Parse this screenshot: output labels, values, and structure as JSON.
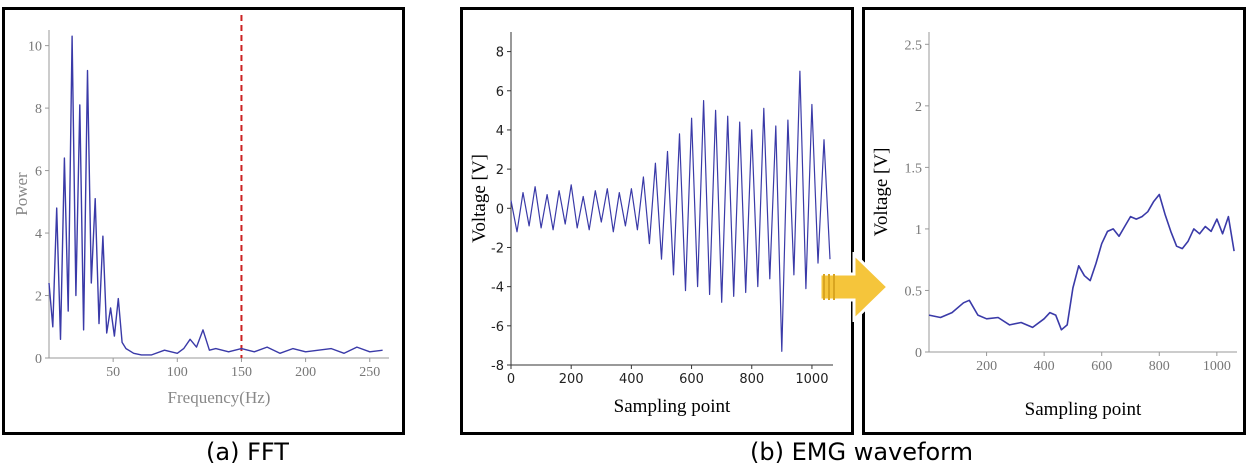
{
  "captions": {
    "fft": "(a) FFT",
    "emg": "(b) EMG waveform"
  },
  "colors": {
    "signal": "#3a3aa8",
    "marker": "#cc2222",
    "arrow_fill": "#f5c53b",
    "arrow_stroke": "#ffffff"
  },
  "chart_data": [
    {
      "type": "line",
      "xlabel": "Frequency(Hz)",
      "ylabel": "Power",
      "xlim": [
        0,
        265
      ],
      "ylim": [
        0,
        10.5
      ],
      "xticks": [
        50,
        100,
        150,
        200,
        250
      ],
      "yticks": [
        0,
        2,
        4,
        6,
        8,
        10
      ],
      "threshold_line": {
        "x": 150,
        "style": "dashed",
        "color": "#cc2222"
      },
      "x": [
        0,
        3,
        6,
        9,
        12,
        15,
        18,
        21,
        24,
        27,
        30,
        33,
        36,
        39,
        42,
        45,
        48,
        51,
        54,
        57,
        60,
        66,
        72,
        80,
        90,
        100,
        105,
        110,
        115,
        120,
        125,
        130,
        140,
        150,
        160,
        170,
        180,
        190,
        200,
        210,
        220,
        230,
        240,
        250,
        260
      ],
      "values": [
        2.4,
        1.0,
        4.8,
        0.6,
        6.4,
        1.5,
        10.3,
        2.0,
        8.1,
        0.9,
        9.2,
        2.4,
        5.1,
        1.1,
        3.9,
        0.8,
        1.6,
        0.7,
        1.9,
        0.5,
        0.3,
        0.15,
        0.1,
        0.1,
        0.25,
        0.15,
        0.3,
        0.6,
        0.35,
        0.9,
        0.25,
        0.3,
        0.2,
        0.3,
        0.2,
        0.35,
        0.15,
        0.3,
        0.2,
        0.25,
        0.3,
        0.15,
        0.35,
        0.2,
        0.25
      ]
    },
    {
      "type": "line",
      "xlabel": "Sampling point",
      "ylabel": "Voltage [V]",
      "xlim": [
        0,
        1070
      ],
      "ylim": [
        -8,
        9
      ],
      "xticks": [
        0,
        200,
        400,
        600,
        800,
        1000
      ],
      "yticks": [
        -8,
        -6,
        -4,
        -2,
        0,
        2,
        4,
        6,
        8
      ],
      "x": [
        0,
        20,
        40,
        60,
        80,
        100,
        120,
        140,
        160,
        180,
        200,
        220,
        240,
        260,
        280,
        300,
        320,
        340,
        360,
        380,
        400,
        420,
        440,
        460,
        480,
        500,
        520,
        540,
        560,
        580,
        600,
        620,
        640,
        660,
        680,
        700,
        720,
        740,
        760,
        780,
        800,
        820,
        840,
        860,
        880,
        900,
        920,
        940,
        960,
        980,
        1000,
        1020,
        1040,
        1060
      ],
      "values": [
        0.4,
        -1.2,
        0.8,
        -0.9,
        1.1,
        -1.0,
        0.7,
        -1.1,
        0.9,
        -0.8,
        1.2,
        -1.0,
        0.6,
        -1.1,
        0.9,
        -0.7,
        1.0,
        -1.2,
        0.8,
        -0.9,
        1.0,
        -1.1,
        1.6,
        -1.8,
        2.3,
        -2.6,
        2.9,
        -3.4,
        3.8,
        -4.2,
        4.6,
        -4.0,
        5.5,
        -4.4,
        5.0,
        -4.8,
        4.7,
        -4.5,
        4.4,
        -4.3,
        4.0,
        -4.0,
        5.1,
        -3.6,
        4.2,
        -7.3,
        4.5,
        -3.4,
        7.0,
        -4.1,
        5.3,
        -2.8,
        3.5,
        -2.6
      ]
    },
    {
      "type": "line",
      "xlabel": "Sampling point",
      "ylabel": "Voltage [V]",
      "xlim": [
        0,
        1070
      ],
      "ylim": [
        0,
        2.6
      ],
      "xticks": [
        200,
        400,
        600,
        800,
        1000
      ],
      "yticks": [
        0,
        0.5,
        1,
        1.5,
        2,
        2.5
      ],
      "x": [
        0,
        40,
        80,
        120,
        140,
        170,
        200,
        240,
        280,
        320,
        360,
        400,
        420,
        440,
        460,
        480,
        500,
        520,
        540,
        560,
        580,
        600,
        620,
        640,
        660,
        680,
        700,
        720,
        740,
        760,
        780,
        800,
        820,
        840,
        860,
        880,
        900,
        920,
        940,
        960,
        980,
        1000,
        1020,
        1040,
        1060
      ],
      "values": [
        0.3,
        0.28,
        0.32,
        0.4,
        0.42,
        0.3,
        0.27,
        0.28,
        0.22,
        0.24,
        0.2,
        0.27,
        0.32,
        0.3,
        0.18,
        0.22,
        0.52,
        0.7,
        0.62,
        0.58,
        0.72,
        0.88,
        0.98,
        1.0,
        0.94,
        1.02,
        1.1,
        1.08,
        1.1,
        1.14,
        1.22,
        1.28,
        1.12,
        0.98,
        0.86,
        0.84,
        0.9,
        1.0,
        0.96,
        1.02,
        0.98,
        1.08,
        0.96,
        1.1,
        0.82
      ]
    }
  ]
}
